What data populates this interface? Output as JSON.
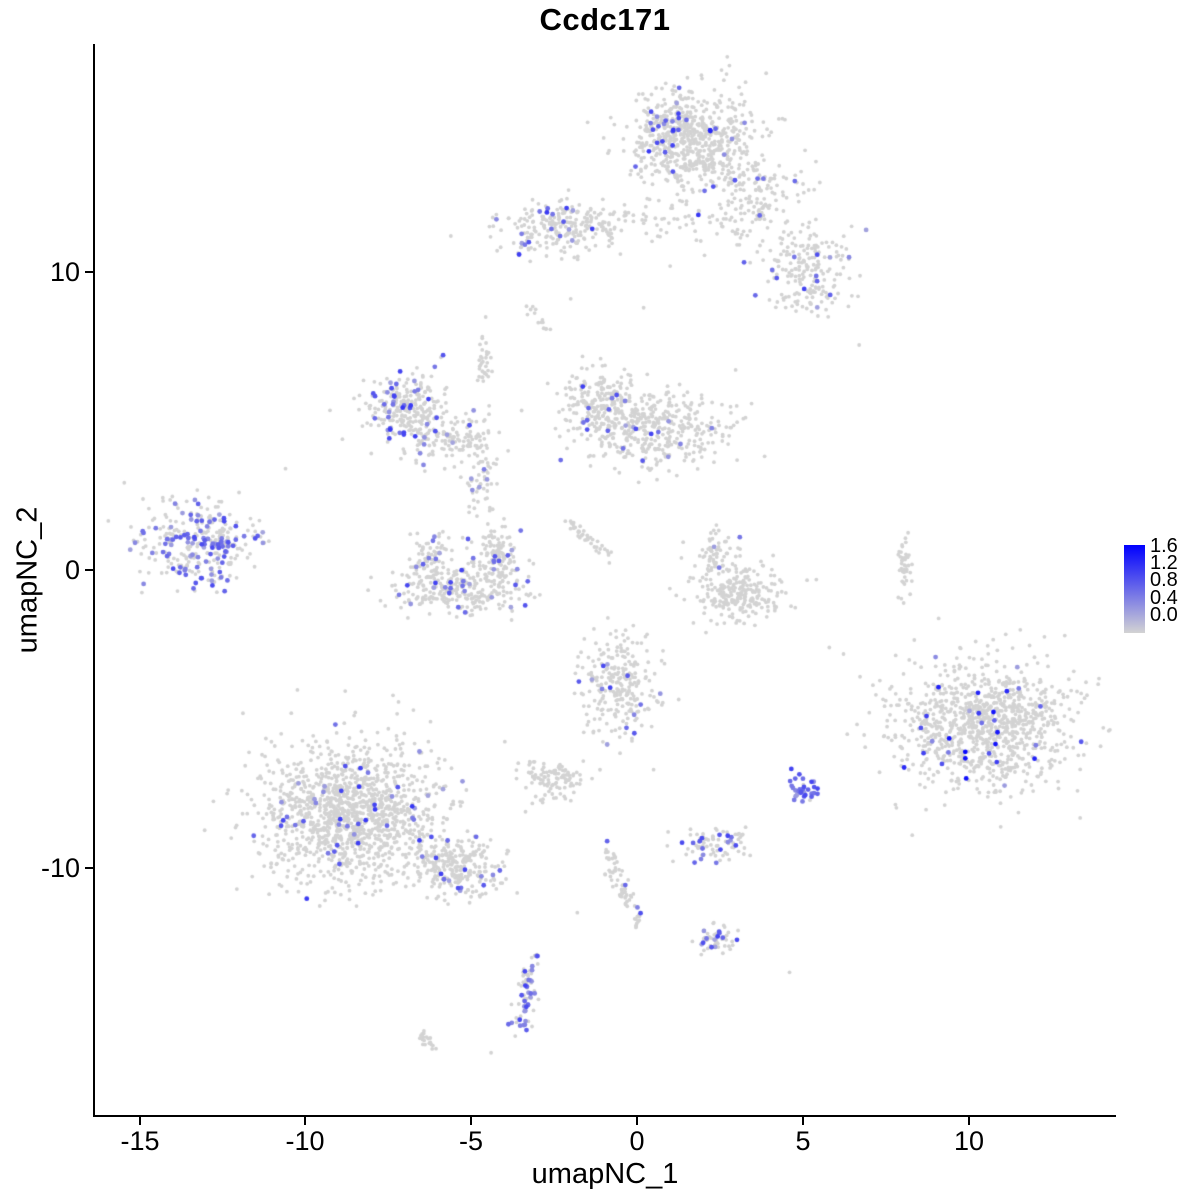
{
  "chart_data": {
    "type": "scatter",
    "title": "Ccdc171",
    "xlabel": "umapNC_1",
    "ylabel": "umapNC_2",
    "xlim": [
      -16.3,
      14.4
    ],
    "ylim": [
      -18.3,
      17.6
    ],
    "x_ticks": [
      -15,
      -10,
      -5,
      0,
      5,
      10
    ],
    "y_ticks": [
      10,
      0,
      -10
    ],
    "grid": false,
    "legend_position": "right",
    "colorbar": {
      "tick_labels": [
        "1.6",
        "1.2",
        "0.8",
        "0.4",
        "0.0"
      ],
      "vmin": 0.0,
      "vmax": 1.6,
      "low": "#D3D3D3",
      "high": "#0000FF"
    },
    "clusters": [
      {
        "name": "top-main",
        "cx": 1.7,
        "cy": 14.4,
        "sx": 0.95,
        "sy": 0.85,
        "n": 650,
        "frac": 0.025,
        "vmax": 1.3
      },
      {
        "name": "top-main-purple-edge",
        "cx": 0.9,
        "cy": 15.2,
        "sx": 0.3,
        "sy": 0.45,
        "n": 55,
        "frac": 0.22,
        "vmax": 1.2
      },
      {
        "name": "top-extension",
        "cx": 3.5,
        "cy": 12.5,
        "sx": 0.8,
        "sy": 0.8,
        "n": 160,
        "frac": 0.03,
        "vmax": 1.2
      },
      {
        "name": "top-right-upper",
        "cx": 5.0,
        "cy": 10.7,
        "sx": 0.7,
        "sy": 0.5,
        "n": 110,
        "frac": 0.02,
        "vmax": 1.0
      },
      {
        "name": "top-right-lower",
        "cx": 5.4,
        "cy": 9.4,
        "sx": 0.6,
        "sy": 0.45,
        "n": 90,
        "frac": 0.05,
        "vmax": 1.2
      },
      {
        "name": "upper-mid",
        "cx": -2.4,
        "cy": 11.5,
        "sx": 0.9,
        "sy": 0.45,
        "n": 230,
        "frac": 0.09,
        "vmax": 1.2
      },
      {
        "name": "upper-mid-bridge",
        "cx": 0.3,
        "cy": 11.7,
        "sx": 1.3,
        "sy": 0.35,
        "n": 55,
        "frac": 0.01,
        "vmax": 0.8
      },
      {
        "name": "mid-upper-lobe",
        "cx": -1.1,
        "cy": 5.7,
        "sx": 0.55,
        "sy": 0.55,
        "n": 190,
        "frac": 0.05,
        "vmax": 1.2
      },
      {
        "name": "mid-main",
        "cx": 0.5,
        "cy": 4.7,
        "sx": 1.15,
        "sy": 0.65,
        "n": 420,
        "frac": 0.03,
        "vmax": 1.2
      },
      {
        "name": "leftmid-main",
        "cx": -6.9,
        "cy": 5.4,
        "sx": 0.6,
        "sy": 0.6,
        "n": 240,
        "frac": 0.14,
        "vmax": 1.2
      },
      {
        "name": "leftmid-arm",
        "cx": -5.9,
        "cy": 4.5,
        "sx": 0.8,
        "sy": 0.4,
        "n": 130,
        "frac": 0.06,
        "vmax": 1.1
      },
      {
        "name": "leftmid-strand",
        "cx": -4.7,
        "cy": 3.1,
        "sx": 0.25,
        "sy": 0.75,
        "n": 70,
        "frac": 0.03,
        "vmax": 0.9
      },
      {
        "name": "strand-upper",
        "cx": -4.6,
        "cy": 7.0,
        "sx": 0.12,
        "sy": 0.5,
        "n": 35,
        "frac": 0.0,
        "vmax": 0.5
      },
      {
        "name": "far-left",
        "cx": -13.2,
        "cy": 0.9,
        "sx": 0.85,
        "sy": 0.7,
        "n": 320,
        "frac": 0.32,
        "vmax": 1.05
      },
      {
        "name": "crescent-bottom",
        "cx": -5.3,
        "cy": -0.6,
        "sx": 1.0,
        "sy": 0.45,
        "n": 300,
        "frac": 0.07,
        "vmax": 1.1
      },
      {
        "name": "crescent-left-tip",
        "cx": -6.2,
        "cy": 0.4,
        "sx": 0.3,
        "sy": 0.4,
        "n": 70,
        "frac": 0.05,
        "vmax": 1.0
      },
      {
        "name": "crescent-right-tip",
        "cx": -4.2,
        "cy": 0.6,
        "sx": 0.35,
        "sy": 0.5,
        "n": 110,
        "frac": 0.06,
        "vmax": 1.0
      },
      {
        "name": "center-right",
        "cx": 3.0,
        "cy": -0.8,
        "sx": 0.75,
        "sy": 0.5,
        "n": 240,
        "frac": 0.015,
        "vmax": 0.9
      },
      {
        "name": "center-right-top",
        "cx": 2.4,
        "cy": 0.5,
        "sx": 0.35,
        "sy": 0.4,
        "n": 60,
        "frac": 0.03,
        "vmax": 1.0
      },
      {
        "name": "right-strip",
        "cx": 8.1,
        "cy": 0.2,
        "sx": 0.12,
        "sy": 0.6,
        "n": 45,
        "frac": 0.0,
        "vmax": 0.5
      },
      {
        "name": "center-low",
        "cx": -0.6,
        "cy": -3.9,
        "sx": 0.55,
        "sy": 0.85,
        "n": 260,
        "frac": 0.06,
        "vmax": 1.1
      },
      {
        "name": "small-blob-left",
        "cx": -2.6,
        "cy": -7.0,
        "sx": 0.45,
        "sy": 0.35,
        "n": 110,
        "frac": 0.01,
        "vmax": 0.8
      },
      {
        "name": "bottomleft-main",
        "cx": -8.6,
        "cy": -8.1,
        "sx": 1.35,
        "sy": 1.15,
        "n": 1350,
        "frac": 0.04,
        "vmax": 1.2
      },
      {
        "name": "bottomleft-arm",
        "cx": -5.5,
        "cy": -10.0,
        "sx": 0.75,
        "sy": 0.5,
        "n": 260,
        "frac": 0.05,
        "vmax": 1.1
      },
      {
        "name": "right-main",
        "cx": 10.4,
        "cy": -5.2,
        "sx": 1.35,
        "sy": 1.05,
        "n": 1050,
        "frac": 0.04,
        "vmax": 1.5
      },
      {
        "name": "purple-blob",
        "cx": 5.0,
        "cy": -7.3,
        "sx": 0.22,
        "sy": 0.28,
        "n": 34,
        "frac": 0.85,
        "vmax": 1.1
      },
      {
        "name": "small-lower-mid",
        "cx": 2.4,
        "cy": -9.2,
        "sx": 0.55,
        "sy": 0.28,
        "n": 85,
        "frac": 0.18,
        "vmax": 1.1
      },
      {
        "name": "small-bottom-mid",
        "cx": 2.4,
        "cy": -12.4,
        "sx": 0.3,
        "sy": 0.25,
        "n": 55,
        "frac": 0.2,
        "vmax": 1.1
      },
      {
        "name": "bottom-strand-blob",
        "cx": -3.4,
        "cy": -14.6,
        "sx": 0.18,
        "sy": 0.45,
        "n": 45,
        "frac": 0.4,
        "vmax": 1.1
      }
    ],
    "strands": [
      {
        "x1": -1.0,
        "y1": -9.3,
        "x2": 0.1,
        "y2": -11.9,
        "jitter": 0.12,
        "n": 70,
        "frac": 0.02,
        "vmax": 1.0
      },
      {
        "x1": -3.1,
        "y1": -12.9,
        "x2": -3.4,
        "y2": -14.0,
        "jitter": 0.1,
        "n": 30,
        "frac": 0.1,
        "vmax": 1.0
      },
      {
        "x1": -6.6,
        "y1": -15.5,
        "x2": -6.1,
        "y2": -16.1,
        "jitter": 0.08,
        "n": 22,
        "frac": 0.0,
        "vmax": 0.5
      },
      {
        "x1": -2.1,
        "y1": 1.6,
        "x2": -0.8,
        "y2": 0.4,
        "jitter": 0.1,
        "n": 40,
        "frac": 0.02,
        "vmax": 0.9
      },
      {
        "x1": -3.3,
        "y1": 8.9,
        "x2": -2.7,
        "y2": 8.1,
        "jitter": 0.1,
        "n": 14,
        "frac": 0.0,
        "vmax": 0.5
      }
    ],
    "singles": [
      [
        6.7,
        7.55
      ],
      [
        -10.6,
        3.4
      ],
      [
        0.2,
        8.8
      ],
      [
        -2.0,
        9.1
      ],
      [
        4.6,
        -13.5
      ],
      [
        -4.4,
        -16.2
      ],
      [
        1.0,
        10.2
      ],
      [
        -0.5,
        10.6
      ],
      [
        5.8,
        -2.6
      ],
      [
        0.5,
        -6.7
      ],
      [
        -1.8,
        -11.5
      ],
      [
        8.3,
        -8.9
      ],
      [
        12.9,
        -2.2
      ],
      [
        -12.0,
        2.6
      ]
    ],
    "colored_singles": [
      [
        -0.9,
        -9.1,
        0.85
      ],
      [
        3.1,
        1.1,
        0.7
      ],
      [
        3.7,
        11.9,
        0.8
      ],
      [
        9.9,
        -6.1,
        1.55
      ],
      [
        -7.4,
        6.1,
        1.0
      ]
    ]
  }
}
